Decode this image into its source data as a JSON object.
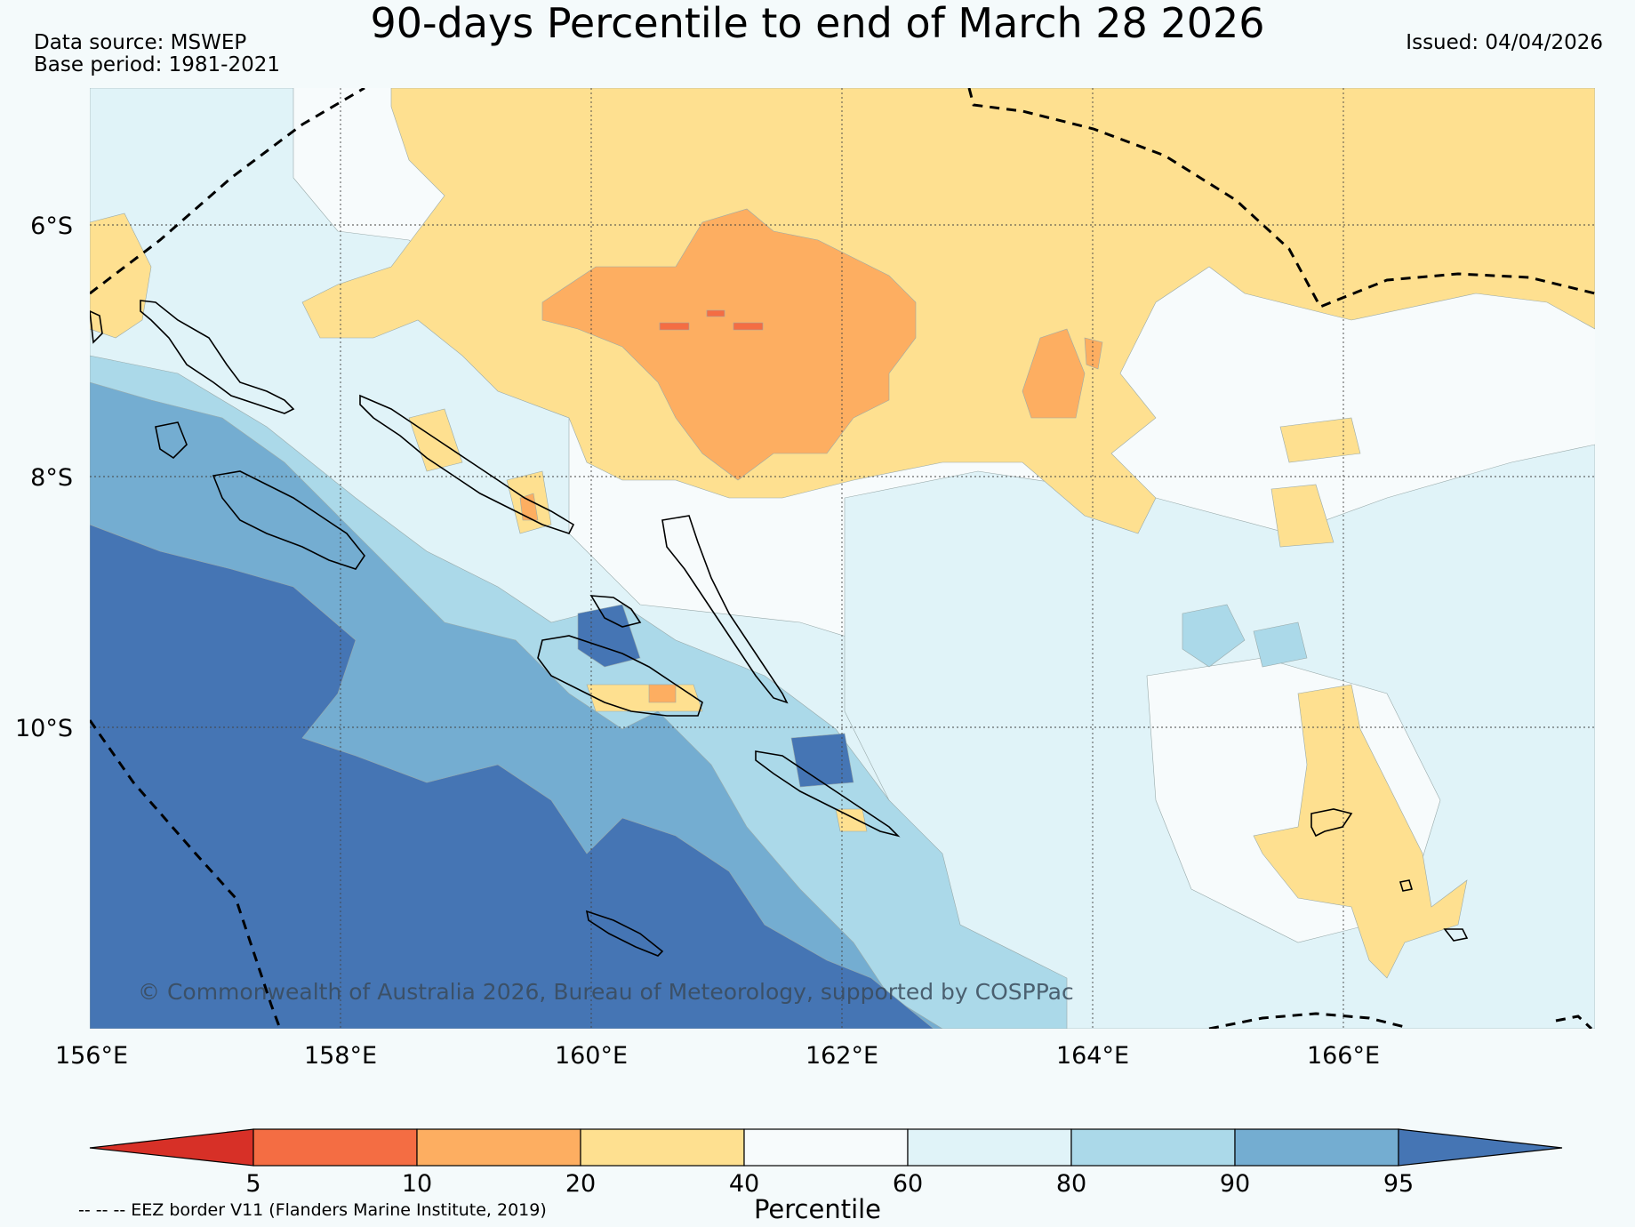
{
  "header": {
    "title": "90-days Percentile to end of March 28 2026",
    "data_source": "Data source: MSWEP",
    "base_period": "Base period: 1981-2021",
    "issued": "Issued: 04/04/2026"
  },
  "map": {
    "lon_range": [
      156,
      168
    ],
    "lat_range": [
      -12.2,
      -4.7
    ],
    "lon_ticks": [
      "156°E",
      "158°E",
      "160°E",
      "162°E",
      "164°E",
      "166°E"
    ],
    "lat_ticks": [
      "6°S",
      "8°S",
      "10°S"
    ],
    "grid": true,
    "copyright": "© Commonwealth of Australia 2026, Bureau of Meteorology, supported by COSPPac",
    "eez_note": "-- -- -- EEZ border V11 (Flanders Marine Institute, 2019)"
  },
  "colorbar": {
    "title": "Percentile",
    "ticks": [
      "5",
      "10",
      "20",
      "40",
      "60",
      "80",
      "90",
      "95"
    ],
    "colors": {
      "below_5": "#d73027",
      "5_10": "#f46d43",
      "10_20": "#fdae61",
      "20_40": "#fee090",
      "40_60": "#f7fbfc",
      "60_80": "#e0f3f8",
      "80_90": "#abd9e9",
      "90_95": "#74add1",
      "above_95": "#4575b4"
    }
  }
}
